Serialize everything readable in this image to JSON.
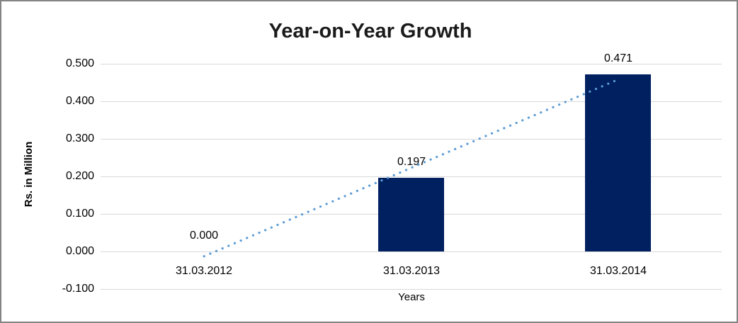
{
  "chart_data": {
    "type": "bar",
    "title": "Year-on-Year Growth",
    "xlabel": "Years",
    "ylabel": "Rs. in Million",
    "categories": [
      "31.03.2012",
      "31.03.2013",
      "31.03.2014"
    ],
    "values": [
      0.0,
      0.197,
      0.471
    ],
    "data_labels": [
      "0.000",
      "0.197",
      "0.471"
    ],
    "ylim": [
      -0.1,
      0.5
    ],
    "ytick_labels": [
      "0.500",
      "0.400",
      "0.300",
      "0.200",
      "0.100",
      "0.000",
      "-0.100"
    ],
    "ytick_values": [
      0.5,
      0.4,
      0.3,
      0.2,
      0.1,
      0.0,
      -0.1
    ],
    "grid": true,
    "legend": false,
    "bar_color": "#002060",
    "gridline_color": "#d9d9d9",
    "trendline": {
      "type": "linear",
      "style": "dotted",
      "color": "#5b9bd5"
    }
  }
}
